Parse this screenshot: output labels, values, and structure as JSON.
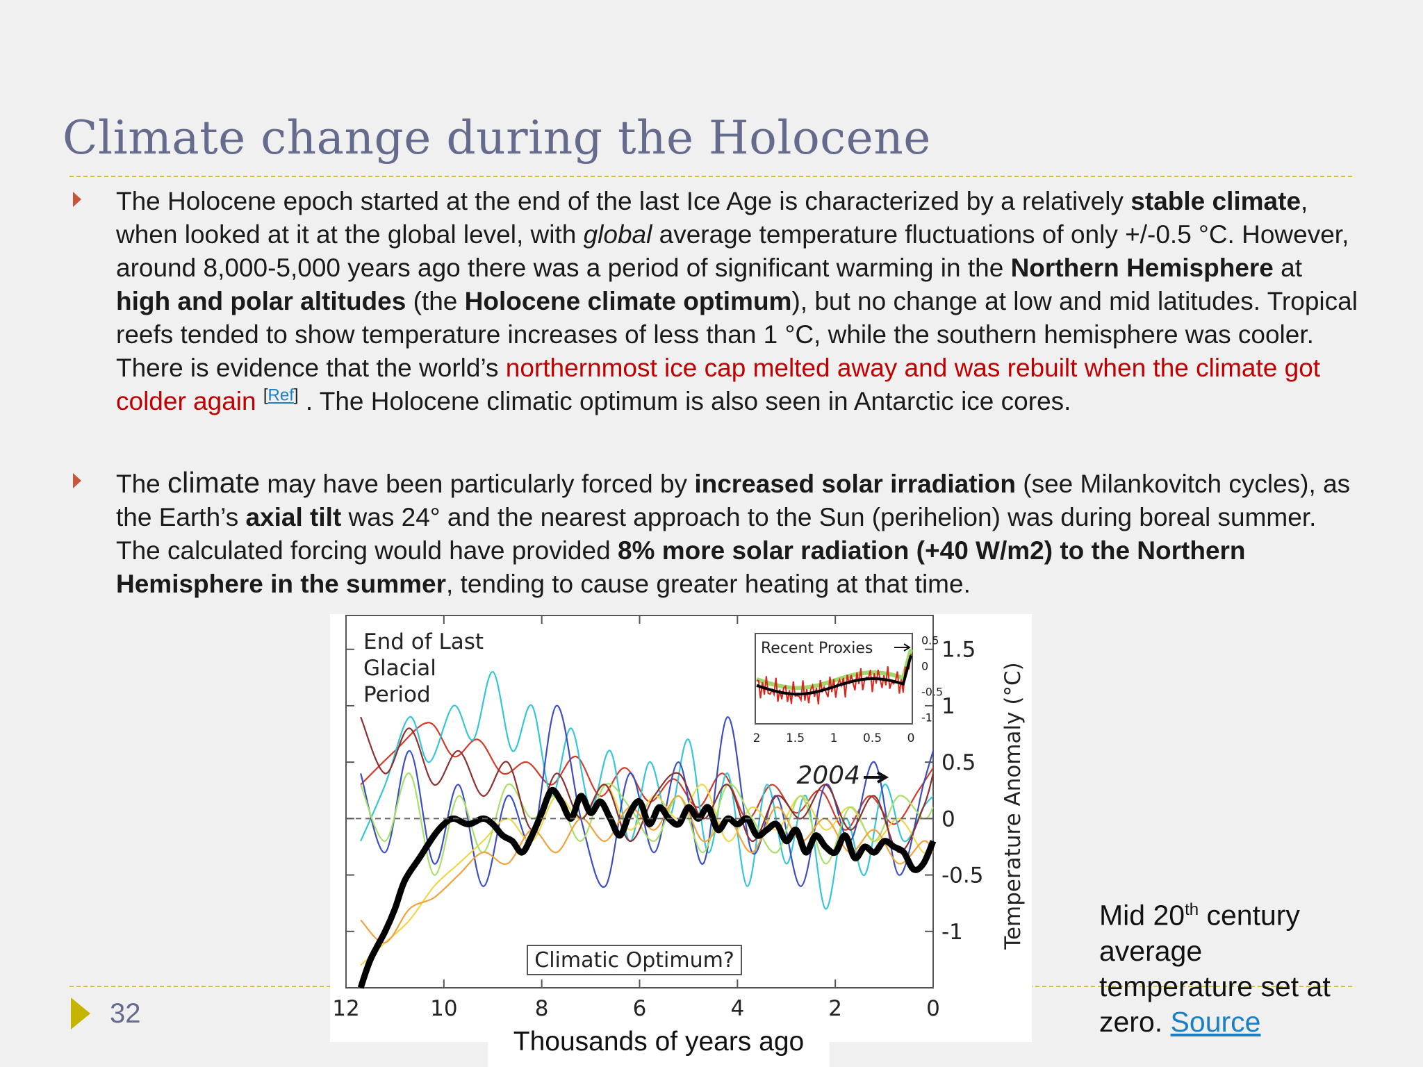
{
  "slide": {
    "title": "Climate change during the Holocene",
    "page_number": "32"
  },
  "bullets": [
    {
      "segments": {
        "s1": "The Holocene epoch started at the end of the last Ice Age is characterized by a relatively ",
        "s2": "stable climate",
        "s3": ", when looked at it at the global level, with ",
        "s4": "global",
        "s5": " average temperature fluctuations of only +/-0.5 °C.  However,  around  8,000-5,000 years ago there was a period of significant warming in the ",
        "s6": "Northern Hemisphere",
        "s7": " at ",
        "s8": "high and polar altitudes",
        "s9": " (the ",
        "s10": "Holocene climate optimum",
        "s11": "), but no change at low and mid latitudes. Tropical reefs tended to show temperature increases of less than 1 °C, while the southern hemisphere was cooler. There is evidence that the world’s ",
        "s12": "northernmost ice cap melted away and was rebuilt when the climate got colder again",
        "s13": " ",
        "ref_open": "[",
        "ref_link": "Ref",
        "ref_close": "]",
        "s14": " . The Holocene climatic optimum is also seen in Antarctic ice cores."
      }
    },
    {
      "segments": {
        "s1": "The ",
        "s2": "climate",
        "s3": " may have been particularly forced by ",
        "s4": "increased solar irradiation",
        "s5": " (see Milankovitch cycles), as the Earth’s ",
        "s6": "axial tilt",
        "s7": " was 24° and the nearest approach to the Sun (perihelion) was during boreal summer. The calculated forcing would have provided ",
        "s8": "8% more solar radiation (+40 W/m2) to the Northern Hemisphere in the summer",
        "s9": ", tending to cause greater heating at that time."
      }
    }
  ],
  "chart_caption": "Thousands of years ago",
  "side_note": {
    "part1": "Mid 20",
    "sup": "th",
    "part2": " century average temperature set at zero. ",
    "link": "Source"
  },
  "chart_data": {
    "type": "line",
    "title": "",
    "xlabel": "Thousands of years ago",
    "ylabel": "Temperature Anomaly (°C)",
    "xlim": [
      12,
      0
    ],
    "ylim": [
      -1.5,
      1.8
    ],
    "x_ticks": [
      "12",
      "10",
      "8",
      "6",
      "4",
      "2",
      "0"
    ],
    "y_ticks": [
      "1.5",
      "1",
      "0.5",
      "0",
      "-0.5",
      "-1"
    ],
    "grid": false,
    "annotations": {
      "glacial_line1": "End of Last",
      "glacial_line2": "Glacial",
      "glacial_line3": "Period",
      "optimum": "Climatic Optimum?",
      "year_marker": "2004"
    },
    "inset": {
      "title": "Recent Proxies",
      "x_ticks": [
        "2",
        "1.5",
        "1",
        "0.5",
        "0"
      ],
      "y_ticks": [
        "0.5",
        "0",
        "-0.5",
        "-1"
      ]
    },
    "series": [
      {
        "color": "#000000",
        "x": [
          11.7,
          11.5,
          11.2,
          11.0,
          10.8,
          10.5,
          10.2,
          10.0,
          9.8,
          9.5,
          9.2,
          9.0,
          8.8,
          8.6,
          8.4,
          8.2,
          8.0,
          7.8,
          7.6,
          7.4,
          7.2,
          7.0,
          6.8,
          6.6,
          6.4,
          6.2,
          6.0,
          5.8,
          5.6,
          5.4,
          5.2,
          5.0,
          4.8,
          4.6,
          4.4,
          4.2,
          4.0,
          3.8,
          3.6,
          3.4,
          3.2,
          3.0,
          2.8,
          2.6,
          2.4,
          2.2,
          2.0,
          1.8,
          1.6,
          1.4,
          1.2,
          1.0,
          0.8,
          0.6,
          0.4,
          0.2,
          0.0
        ],
        "y": [
          -1.5,
          -1.25,
          -1.0,
          -0.8,
          -0.55,
          -0.35,
          -0.15,
          -0.05,
          0.0,
          -0.05,
          0.0,
          -0.05,
          -0.15,
          -0.2,
          -0.3,
          -0.15,
          0.05,
          0.25,
          0.15,
          0.0,
          0.2,
          0.05,
          0.15,
          0.0,
          -0.15,
          0.05,
          0.15,
          -0.05,
          0.1,
          0.0,
          -0.05,
          0.1,
          0.0,
          0.1,
          -0.1,
          0.0,
          -0.05,
          0.0,
          -0.15,
          -0.1,
          -0.05,
          -0.2,
          -0.1,
          -0.3,
          -0.15,
          -0.25,
          -0.3,
          -0.15,
          -0.35,
          -0.25,
          -0.3,
          -0.2,
          -0.25,
          -0.3,
          -0.45,
          -0.4,
          -0.2
        ]
      },
      {
        "color": "#d23b2a",
        "x": [
          11.7,
          11.0,
          10.3,
          9.8,
          9.3,
          8.8,
          8.3,
          7.8,
          7.3,
          6.8,
          6.3,
          5.8,
          5.3,
          4.8,
          4.3,
          3.8,
          3.3,
          2.8,
          2.3,
          1.8,
          1.3,
          0.8,
          0.3,
          0.0
        ],
        "y": [
          0.3,
          0.6,
          0.85,
          0.55,
          0.7,
          0.4,
          0.5,
          0.3,
          0.55,
          0.2,
          0.45,
          0.15,
          0.35,
          0.1,
          0.4,
          0.0,
          0.3,
          0.05,
          0.25,
          -0.1,
          0.2,
          -0.05,
          0.25,
          0.45
        ]
      },
      {
        "color": "#34c6d6",
        "x": [
          11.7,
          11.2,
          10.7,
          10.3,
          9.8,
          9.4,
          9.0,
          8.6,
          8.2,
          7.8,
          7.4,
          7.0,
          6.6,
          6.2,
          5.8,
          5.4,
          5.0,
          4.6,
          4.2,
          3.8,
          3.4,
          3.0,
          2.6,
          2.2,
          1.8,
          1.4,
          1.0,
          0.6,
          0.2,
          0.0
        ],
        "y": [
          -0.2,
          0.3,
          0.9,
          0.5,
          1.0,
          0.7,
          1.3,
          0.6,
          1.0,
          0.2,
          0.8,
          0.1,
          0.6,
          -0.2,
          0.5,
          0.0,
          0.7,
          -0.3,
          0.4,
          -0.6,
          0.3,
          -0.4,
          0.2,
          -0.8,
          0.0,
          -0.5,
          0.3,
          -0.2,
          0.1,
          0.2
        ]
      },
      {
        "color": "#3a4ec2",
        "x": [
          11.7,
          11.2,
          10.7,
          10.2,
          9.7,
          9.2,
          8.7,
          8.2,
          7.7,
          7.2,
          6.7,
          6.2,
          5.7,
          5.2,
          4.7,
          4.2,
          3.7,
          3.2,
          2.7,
          2.2,
          1.7,
          1.2,
          0.7,
          0.2,
          0.0
        ],
        "y": [
          0.4,
          -0.3,
          0.6,
          -0.4,
          0.3,
          -0.6,
          0.2,
          -0.2,
          1.0,
          0.0,
          -0.6,
          0.4,
          -0.3,
          0.5,
          -0.4,
          0.9,
          -0.3,
          0.2,
          -0.6,
          0.3,
          -0.2,
          0.5,
          -0.5,
          0.3,
          0.6
        ]
      },
      {
        "color": "#f2d64a",
        "x": [
          11.7,
          11.2,
          10.7,
          10.2,
          9.7,
          9.2,
          8.7,
          8.2,
          7.7,
          7.2,
          6.7,
          6.2,
          5.7,
          5.2,
          4.7,
          4.2,
          3.7,
          3.2,
          2.7,
          2.2,
          1.7,
          1.2,
          0.7,
          0.2,
          0.0
        ],
        "y": [
          -1.3,
          -1.1,
          -0.9,
          -0.6,
          -0.4,
          -0.2,
          0.0,
          -0.2,
          0.2,
          0.0,
          0.3,
          -0.1,
          0.2,
          0.0,
          0.3,
          -0.2,
          0.1,
          -0.1,
          0.2,
          -0.1,
          0.1,
          -0.2,
          0.0,
          -0.3,
          -0.2
        ]
      },
      {
        "color": "#a8e06a",
        "x": [
          11.7,
          11.2,
          10.7,
          10.2,
          9.7,
          9.2,
          8.7,
          8.2,
          7.7,
          7.2,
          6.7,
          6.2,
          5.7,
          5.2,
          4.7,
          4.2,
          3.7,
          3.2,
          2.7,
          2.2,
          1.7,
          1.2,
          0.7,
          0.2,
          0.0
        ],
        "y": [
          0.3,
          -0.2,
          0.4,
          -0.5,
          0.2,
          -0.3,
          0.3,
          0.0,
          0.2,
          -0.2,
          0.3,
          0.1,
          -0.2,
          0.2,
          -0.3,
          0.3,
          0.0,
          -0.3,
          0.2,
          -0.4,
          0.1,
          -0.2,
          0.2,
          0.0,
          0.1
        ]
      },
      {
        "color": "#8b2f2f",
        "x": [
          11.7,
          11.2,
          10.7,
          10.2,
          9.7,
          9.2,
          8.7,
          8.2,
          7.7,
          7.2,
          6.7,
          6.2,
          5.7,
          5.2,
          4.7,
          4.2,
          3.7,
          3.2,
          2.7,
          2.2,
          1.7,
          1.2,
          0.7,
          0.2,
          0.0
        ],
        "y": [
          0.9,
          0.4,
          0.8,
          0.3,
          0.6,
          0.2,
          0.5,
          -0.1,
          0.4,
          0.0,
          0.3,
          -0.2,
          0.2,
          0.4,
          0.0,
          0.3,
          -0.2,
          0.2,
          0.0,
          0.3,
          -0.1,
          0.2,
          -0.3,
          0.1,
          0.4
        ]
      },
      {
        "color": "#f0a23c",
        "x": [
          11.7,
          11.2,
          10.7,
          10.2,
          9.7,
          9.2,
          8.7,
          8.2,
          7.7,
          7.2,
          6.7,
          6.2,
          5.7,
          5.2,
          4.7,
          4.2,
          3.7,
          3.2,
          2.7,
          2.2,
          1.7,
          1.2,
          0.7,
          0.2,
          0.0
        ],
        "y": [
          -0.9,
          -1.1,
          -0.8,
          -0.7,
          -0.5,
          -0.3,
          -0.4,
          -0.1,
          -0.3,
          0.0,
          -0.2,
          0.1,
          -0.1,
          0.2,
          -0.2,
          0.0,
          -0.3,
          0.1,
          -0.2,
          0.0,
          -0.3,
          -0.1,
          -0.4,
          -0.2,
          -0.3
        ]
      }
    ]
  }
}
